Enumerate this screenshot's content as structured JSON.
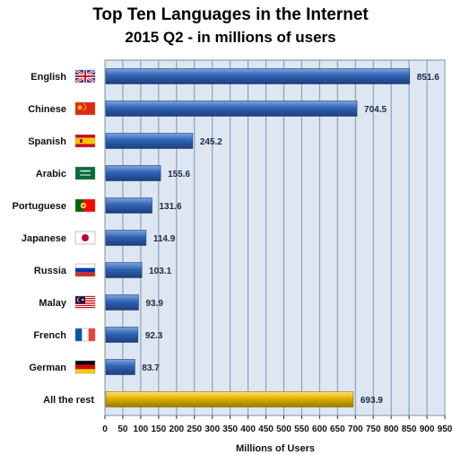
{
  "chart_data": {
    "type": "bar",
    "orientation": "horizontal",
    "title": "Top Ten Languages in the Internet",
    "subtitle": "2015 Q2 - in millions of users",
    "xlabel": "Millions of Users",
    "ylabel": "",
    "xlim": [
      0,
      950
    ],
    "xticks": [
      0,
      50,
      100,
      150,
      200,
      250,
      300,
      350,
      400,
      450,
      500,
      550,
      600,
      650,
      700,
      750,
      800,
      850,
      900,
      950
    ],
    "grid": true,
    "legend": "none",
    "categories": [
      "English",
      "Chinese",
      "Spanish",
      "Arabic",
      "Portuguese",
      "Japanese",
      "Russia",
      "Malay",
      "French",
      "German",
      "All the rest"
    ],
    "values": [
      851.6,
      704.5,
      245.2,
      155.6,
      131.6,
      114.9,
      103.1,
      93.9,
      92.3,
      83.7,
      693.9
    ],
    "value_labels": [
      "851.6",
      "704.5",
      "245.2",
      "155.6",
      "131.6",
      "114.9",
      "103.1",
      "93.9",
      "92.3",
      "83.7",
      "693.9"
    ],
    "flag_icons": [
      "uk-flag-icon",
      "china-flag-icon",
      "spain-flag-icon",
      "saudi-arabia-flag-icon",
      "portugal-flag-icon",
      "japan-flag-icon",
      "russia-flag-icon",
      "malaysia-flag-icon",
      "france-flag-icon",
      "germany-flag-icon",
      ""
    ],
    "bar_colors": {
      "main": "#2f63b5",
      "highlight": "#e0b000"
    },
    "plot_background": "#dde6f1"
  }
}
